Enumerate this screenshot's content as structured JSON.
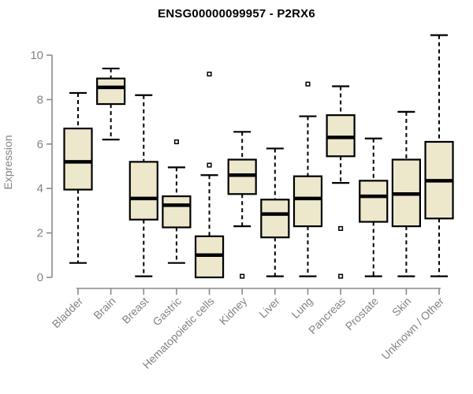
{
  "chart": {
    "title": "ENSG00000099957 - P2RX6"
  },
  "chart_data": {
    "type": "boxplot",
    "title": "ENSG00000099957 - P2RX6",
    "xlabel": "",
    "ylabel": "Expression",
    "ylim": [
      0,
      10
    ],
    "yticks": [
      0,
      2,
      4,
      6,
      8,
      10
    ],
    "grid": false,
    "legend": "none",
    "categories": [
      "Bladder",
      "Brain",
      "Breast",
      "Gastric",
      "Hematopoietic cells",
      "Kidney",
      "Liver",
      "Lung",
      "Pancreas",
      "Prostate",
      "Skin",
      "Unknown / Other"
    ],
    "boxes": [
      {
        "category": "Bladder",
        "whisker_low": 0.65,
        "q1": 3.95,
        "median": 5.2,
        "q3": 6.7,
        "whisker_high": 8.3,
        "outliers": []
      },
      {
        "category": "Brain",
        "whisker_low": 6.2,
        "q1": 7.8,
        "median": 8.55,
        "q3": 8.95,
        "whisker_high": 9.4,
        "outliers": []
      },
      {
        "category": "Breast",
        "whisker_low": 0.05,
        "q1": 2.6,
        "median": 3.55,
        "q3": 5.2,
        "whisker_high": 8.2,
        "outliers": []
      },
      {
        "category": "Gastric",
        "whisker_low": 0.65,
        "q1": 2.25,
        "median": 3.25,
        "q3": 3.65,
        "whisker_high": 4.95,
        "outliers": [
          6.1
        ]
      },
      {
        "category": "Hematopoietic cells",
        "whisker_low": 0.0,
        "q1": 0.0,
        "median": 1.0,
        "q3": 1.85,
        "whisker_high": 4.6,
        "outliers": [
          5.05,
          9.15
        ]
      },
      {
        "category": "Kidney",
        "whisker_low": 2.3,
        "q1": 3.75,
        "median": 4.6,
        "q3": 5.3,
        "whisker_high": 6.55,
        "outliers": [
          0.05
        ]
      },
      {
        "category": "Liver",
        "whisker_low": 0.05,
        "q1": 1.8,
        "median": 2.85,
        "q3": 3.5,
        "whisker_high": 5.8,
        "outliers": []
      },
      {
        "category": "Lung",
        "whisker_low": 0.05,
        "q1": 2.3,
        "median": 3.55,
        "q3": 4.55,
        "whisker_high": 7.25,
        "outliers": [
          8.7
        ]
      },
      {
        "category": "Pancreas",
        "whisker_low": 4.25,
        "q1": 5.45,
        "median": 6.3,
        "q3": 7.3,
        "whisker_high": 8.6,
        "outliers": [
          2.2,
          0.05
        ]
      },
      {
        "category": "Prostate",
        "whisker_low": 0.05,
        "q1": 2.5,
        "median": 3.65,
        "q3": 4.35,
        "whisker_high": 6.25,
        "outliers": []
      },
      {
        "category": "Skin",
        "whisker_low": 0.05,
        "q1": 2.3,
        "median": 3.75,
        "q3": 5.3,
        "whisker_high": 7.45,
        "outliers": []
      },
      {
        "category": "Unknown / Other",
        "whisker_low": 0.05,
        "q1": 2.65,
        "median": 4.35,
        "q3": 6.1,
        "whisker_high": 10.9,
        "outliers": []
      }
    ],
    "colors": {
      "box_fill": "#EDE7CC",
      "box_border": "#000000",
      "median": "#000000",
      "whisker": "#000000",
      "outlier_border": "#000000",
      "outlier_fill": "#ffffff",
      "axis": "#8a8a8a",
      "tick_label": "#838383",
      "title": "#000000",
      "background": "#ffffff"
    }
  }
}
